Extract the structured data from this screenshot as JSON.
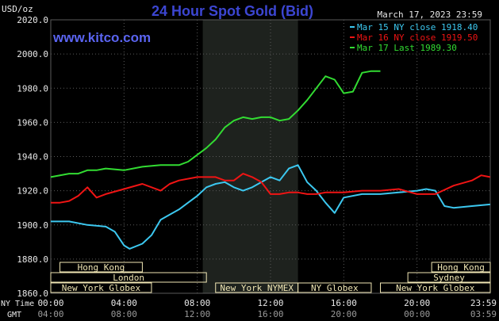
{
  "header": {
    "title": "24 Hour Spot Gold (Bid)",
    "datetime": "March 17, 2023 23:59",
    "watermark": "www.kitco.com",
    "unit": "USD/oz"
  },
  "colors": {
    "background": "#000000",
    "title": "#3c46d2",
    "watermark": "#5a64f0",
    "axis_text": "#e8e8e8",
    "grid": "#5a5a5a",
    "ny_session_shade": "#1e221e",
    "session_bar": "#f0e6b4"
  },
  "chart_data": {
    "type": "line",
    "ylabel": "USD/oz",
    "ylim": [
      1860,
      2020
    ],
    "yticks": [
      "2020.0",
      "2000.0",
      "1980.0",
      "1960.0",
      "1940.0",
      "1920.0",
      "1900.0",
      "1880.0",
      "1860.0"
    ],
    "x_hours": [
      0,
      24
    ],
    "xticks_ny": [
      "00:00",
      "04:00",
      "08:00",
      "12:00",
      "16:00",
      "20:00",
      "23:59"
    ],
    "xticks_gmt": [
      "04:00",
      "08:00",
      "12:00",
      "16:00",
      "20:00",
      "00:00",
      "03:59"
    ],
    "axis_row_labels": {
      "ny": "NY Time",
      "gmt": "GMT"
    },
    "ny_session_hours": [
      8.3,
      13.5
    ],
    "legend_position": "top-right",
    "series": [
      {
        "name": "Mar 15 NY close 1918.40",
        "color": "#3cc8f0",
        "x": [
          0,
          1,
          2,
          3,
          3.5,
          4,
          4.3,
          5,
          5.5,
          6,
          6.5,
          7,
          7.5,
          8,
          8.5,
          9,
          9.5,
          10,
          10.5,
          11,
          11.5,
          12,
          12.5,
          13,
          13.5,
          14,
          14.5,
          15,
          15.5,
          16,
          17,
          18,
          19,
          20,
          20.5,
          21,
          21.5,
          22,
          23,
          23.99
        ],
        "y": [
          1902,
          1902,
          1900,
          1899,
          1896,
          1888,
          1886,
          1889,
          1894,
          1903,
          1906,
          1909,
          1913,
          1917,
          1922,
          1924,
          1925,
          1922,
          1920,
          1922,
          1925,
          1928,
          1926,
          1933,
          1935,
          1925,
          1920,
          1913,
          1907,
          1916,
          1918,
          1918,
          1919,
          1920,
          1921,
          1920,
          1911,
          1910,
          1911,
          1912
        ]
      },
      {
        "name": "Mar 16 NY close 1919.50",
        "color": "#f01414",
        "x": [
          0,
          0.5,
          1,
          1.5,
          2,
          2.5,
          3,
          4,
          5,
          6,
          6.5,
          7,
          8,
          8.5,
          9,
          9.5,
          10,
          10.5,
          11,
          11.5,
          12,
          12.5,
          13,
          13.5,
          14,
          14.5,
          15,
          16,
          17,
          18,
          19,
          20,
          21,
          22,
          23,
          23.5,
          23.99
        ],
        "y": [
          1913,
          1913,
          1914,
          1917,
          1922,
          1916,
          1918,
          1921,
          1924,
          1920,
          1924,
          1926,
          1928,
          1928,
          1928,
          1926,
          1926,
          1930,
          1928,
          1925,
          1918,
          1918,
          1919,
          1919,
          1918,
          1918,
          1919,
          1919,
          1920,
          1920,
          1921,
          1918,
          1918,
          1923,
          1926,
          1929,
          1928
        ]
      },
      {
        "name": "Mar 17 Last 1989.30",
        "color": "#32dc32",
        "x": [
          0,
          1,
          1.5,
          2,
          2.5,
          3,
          4,
          5,
          6,
          7,
          7.5,
          8,
          8.5,
          9,
          9.5,
          10,
          10.5,
          11,
          11.5,
          12,
          12.5,
          13,
          13.5,
          14,
          14.5,
          15,
          15.5,
          16,
          16.5,
          17,
          17.5,
          18
        ],
        "y": [
          1928,
          1930,
          1930,
          1932,
          1932,
          1933,
          1932,
          1934,
          1935,
          1935,
          1937,
          1941,
          1945,
          1950,
          1957,
          1961,
          1963,
          1962,
          1963,
          1963,
          1961,
          1962,
          1967,
          1973,
          1980,
          1987,
          1985,
          1977,
          1978,
          1989,
          1990,
          1990
        ]
      }
    ]
  },
  "session_rows": [
    [
      {
        "label": "Hong Kong",
        "start": 0.5,
        "end": 5.0
      },
      {
        "label": "Hong Kong",
        "start": 20.8,
        "end": 24.0
      }
    ],
    [
      {
        "label": "London",
        "start": 0.0,
        "end": 8.5
      },
      {
        "label": "Sydney",
        "start": 19.5,
        "end": 24.0
      }
    ],
    [
      {
        "label": "New York Globex",
        "start": 0.0,
        "end": 5.5
      },
      {
        "label": "New York NYMEX",
        "start": 9.0,
        "end": 13.5
      },
      {
        "label": "NY Globex",
        "start": 13.5,
        "end": 17.5
      },
      {
        "label": "New York Globex",
        "start": 18.0,
        "end": 24.0
      }
    ]
  ]
}
